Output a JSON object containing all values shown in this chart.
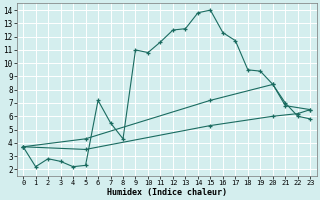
{
  "xlabel": "Humidex (Indice chaleur)",
  "bg_color": "#d4eeee",
  "grid_color": "#b8d8d8",
  "line_color": "#1a6b60",
  "xlim": [
    -0.5,
    23.5
  ],
  "ylim": [
    1.5,
    14.5
  ],
  "xticks": [
    0,
    1,
    2,
    3,
    4,
    5,
    6,
    7,
    8,
    9,
    10,
    11,
    12,
    13,
    14,
    15,
    16,
    17,
    18,
    19,
    20,
    21,
    22,
    23
  ],
  "yticks": [
    2,
    3,
    4,
    5,
    6,
    7,
    8,
    9,
    10,
    11,
    12,
    13,
    14
  ],
  "series1": [
    [
      0,
      3.7
    ],
    [
      1,
      2.2
    ],
    [
      2,
      2.8
    ],
    [
      3,
      2.6
    ],
    [
      4,
      2.2
    ],
    [
      5,
      2.3
    ],
    [
      6,
      7.2
    ],
    [
      7,
      5.5
    ],
    [
      8,
      4.3
    ],
    [
      9,
      11.0
    ],
    [
      10,
      10.8
    ],
    [
      11,
      11.6
    ],
    [
      12,
      12.5
    ],
    [
      13,
      12.6
    ],
    [
      14,
      13.8
    ],
    [
      15,
      14.0
    ],
    [
      16,
      12.3
    ],
    [
      17,
      11.7
    ],
    [
      18,
      9.5
    ],
    [
      19,
      9.4
    ],
    [
      20,
      8.4
    ],
    [
      21,
      7.0
    ],
    [
      22,
      6.0
    ],
    [
      23,
      5.8
    ]
  ],
  "series2": [
    [
      0,
      3.7
    ],
    [
      5,
      4.3
    ],
    [
      15,
      7.2
    ],
    [
      20,
      8.4
    ],
    [
      21,
      6.8
    ],
    [
      23,
      6.5
    ]
  ],
  "series3": [
    [
      0,
      3.7
    ],
    [
      5,
      3.5
    ],
    [
      15,
      5.3
    ],
    [
      20,
      6.0
    ],
    [
      22,
      6.2
    ],
    [
      23,
      6.5
    ]
  ]
}
